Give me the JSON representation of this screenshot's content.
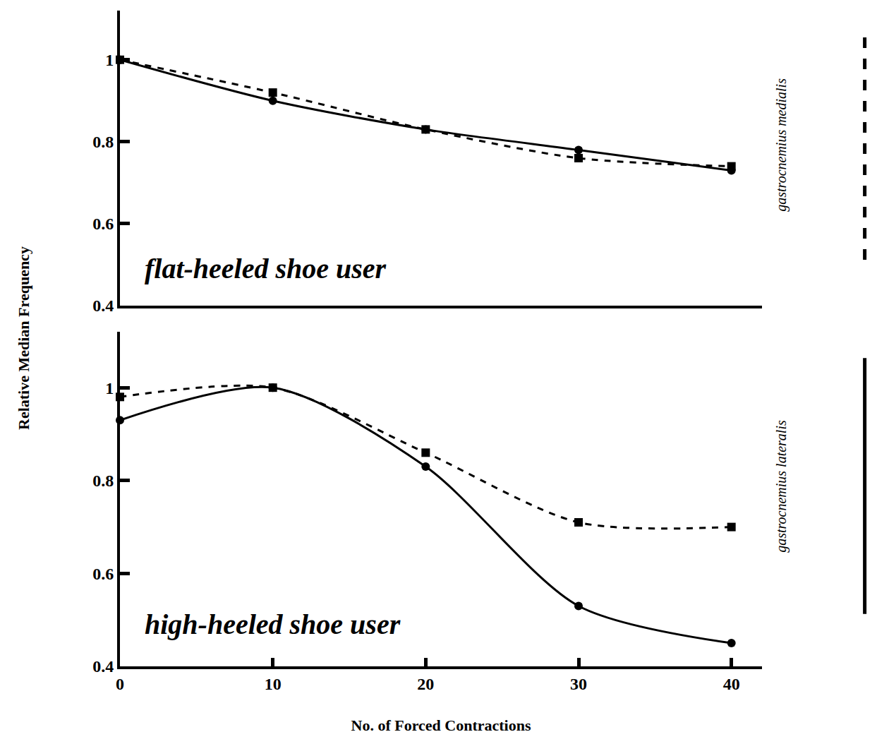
{
  "chart_data": {
    "type": "line",
    "x_label": "No. of Forced Contractions",
    "y_label": "Relative Median Frequency",
    "x": [
      0,
      10,
      20,
      30,
      40
    ],
    "xlim": [
      0,
      42
    ],
    "xticks": [
      0,
      10,
      20,
      30,
      40
    ],
    "ylim": [
      0.4,
      1.12
    ],
    "yticks": [
      0.4,
      0.6,
      0.8,
      1
    ],
    "grid": false,
    "legend": "right",
    "series": [
      {
        "name": "gastrocnemius medialis",
        "color": "#000000",
        "line_style": "dashed",
        "marker": "square"
      },
      {
        "name": "gastrocnemius lateralis",
        "color": "#000000",
        "line_style": "solid",
        "marker": "circle"
      }
    ],
    "panels": [
      {
        "annotation": "flat-heeled shoe user",
        "tick_labels": "y",
        "values": [
          [
            1.0,
            0.92,
            0.83,
            0.76,
            0.74
          ],
          [
            1.0,
            0.9,
            0.83,
            0.78,
            0.73
          ]
        ]
      },
      {
        "annotation": "high-heeled shoe user",
        "tick_labels": true,
        "values": [
          [
            0.98,
            1.0,
            0.86,
            0.71,
            0.7
          ],
          [
            0.93,
            1.0,
            0.83,
            0.53,
            0.45
          ]
        ]
      }
    ]
  }
}
